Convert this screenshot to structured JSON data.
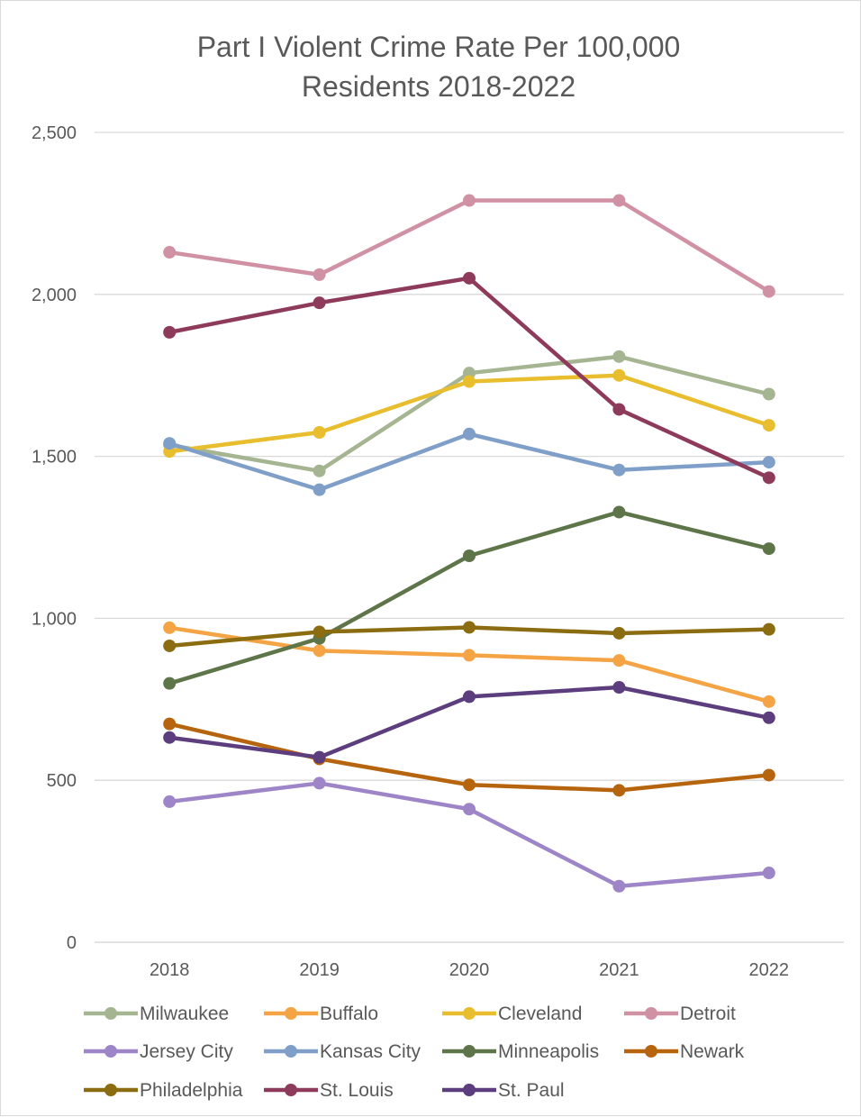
{
  "chart_data": {
    "type": "line",
    "title": "Part I Violent Crime Rate Per 100,000 Residents 2018-2022",
    "title_lines": [
      "Part I Violent Crime Rate Per 100,000",
      "Residents 2018-2022"
    ],
    "xlabel": "",
    "ylabel": "",
    "categories": [
      "2018",
      "2019",
      "2020",
      "2021",
      "2022"
    ],
    "ylim": [
      0,
      2500
    ],
    "yticks": [
      0,
      500,
      1000,
      1500,
      2000,
      2500
    ],
    "ytick_labels": [
      "0",
      "500",
      "1,000",
      "1,500",
      "2,000",
      "2,500"
    ],
    "grid": true,
    "legend_position": "bottom",
    "series": [
      {
        "name": "Milwaukee",
        "color": "#a5b592",
        "values": [
          1535,
          1455,
          1757,
          1808,
          1692
        ]
      },
      {
        "name": "Buffalo",
        "color": "#f4a445",
        "values": [
          971,
          900,
          886,
          870,
          743
        ]
      },
      {
        "name": "Cleveland",
        "color": "#e9be2e",
        "values": [
          1515,
          1574,
          1731,
          1750,
          1596
        ]
      },
      {
        "name": "Detroit",
        "color": "#d191a5",
        "values": [
          2130,
          2061,
          2290,
          2290,
          2009
        ]
      },
      {
        "name": "Jersey City",
        "color": "#9d85c7",
        "values": [
          434,
          491,
          411,
          173,
          214
        ]
      },
      {
        "name": "Kansas City",
        "color": "#7f9fc8",
        "values": [
          1540,
          1397,
          1569,
          1458,
          1482
        ]
      },
      {
        "name": "Minneapolis",
        "color": "#5d7549",
        "values": [
          799,
          938,
          1193,
          1328,
          1215
        ]
      },
      {
        "name": "Newark",
        "color": "#b7640f",
        "values": [
          674,
          566,
          486,
          469,
          516
        ]
      },
      {
        "name": "Philadelphia",
        "color": "#8b6c10",
        "values": [
          915,
          958,
          972,
          954,
          966
        ]
      },
      {
        "name": "St. Louis",
        "color": "#8e3a5a",
        "values": [
          1883,
          1974,
          2050,
          1645,
          1434
        ]
      },
      {
        "name": "St. Paul",
        "color": "#5c3d7d",
        "values": [
          632,
          571,
          758,
          787,
          693
        ]
      }
    ]
  }
}
